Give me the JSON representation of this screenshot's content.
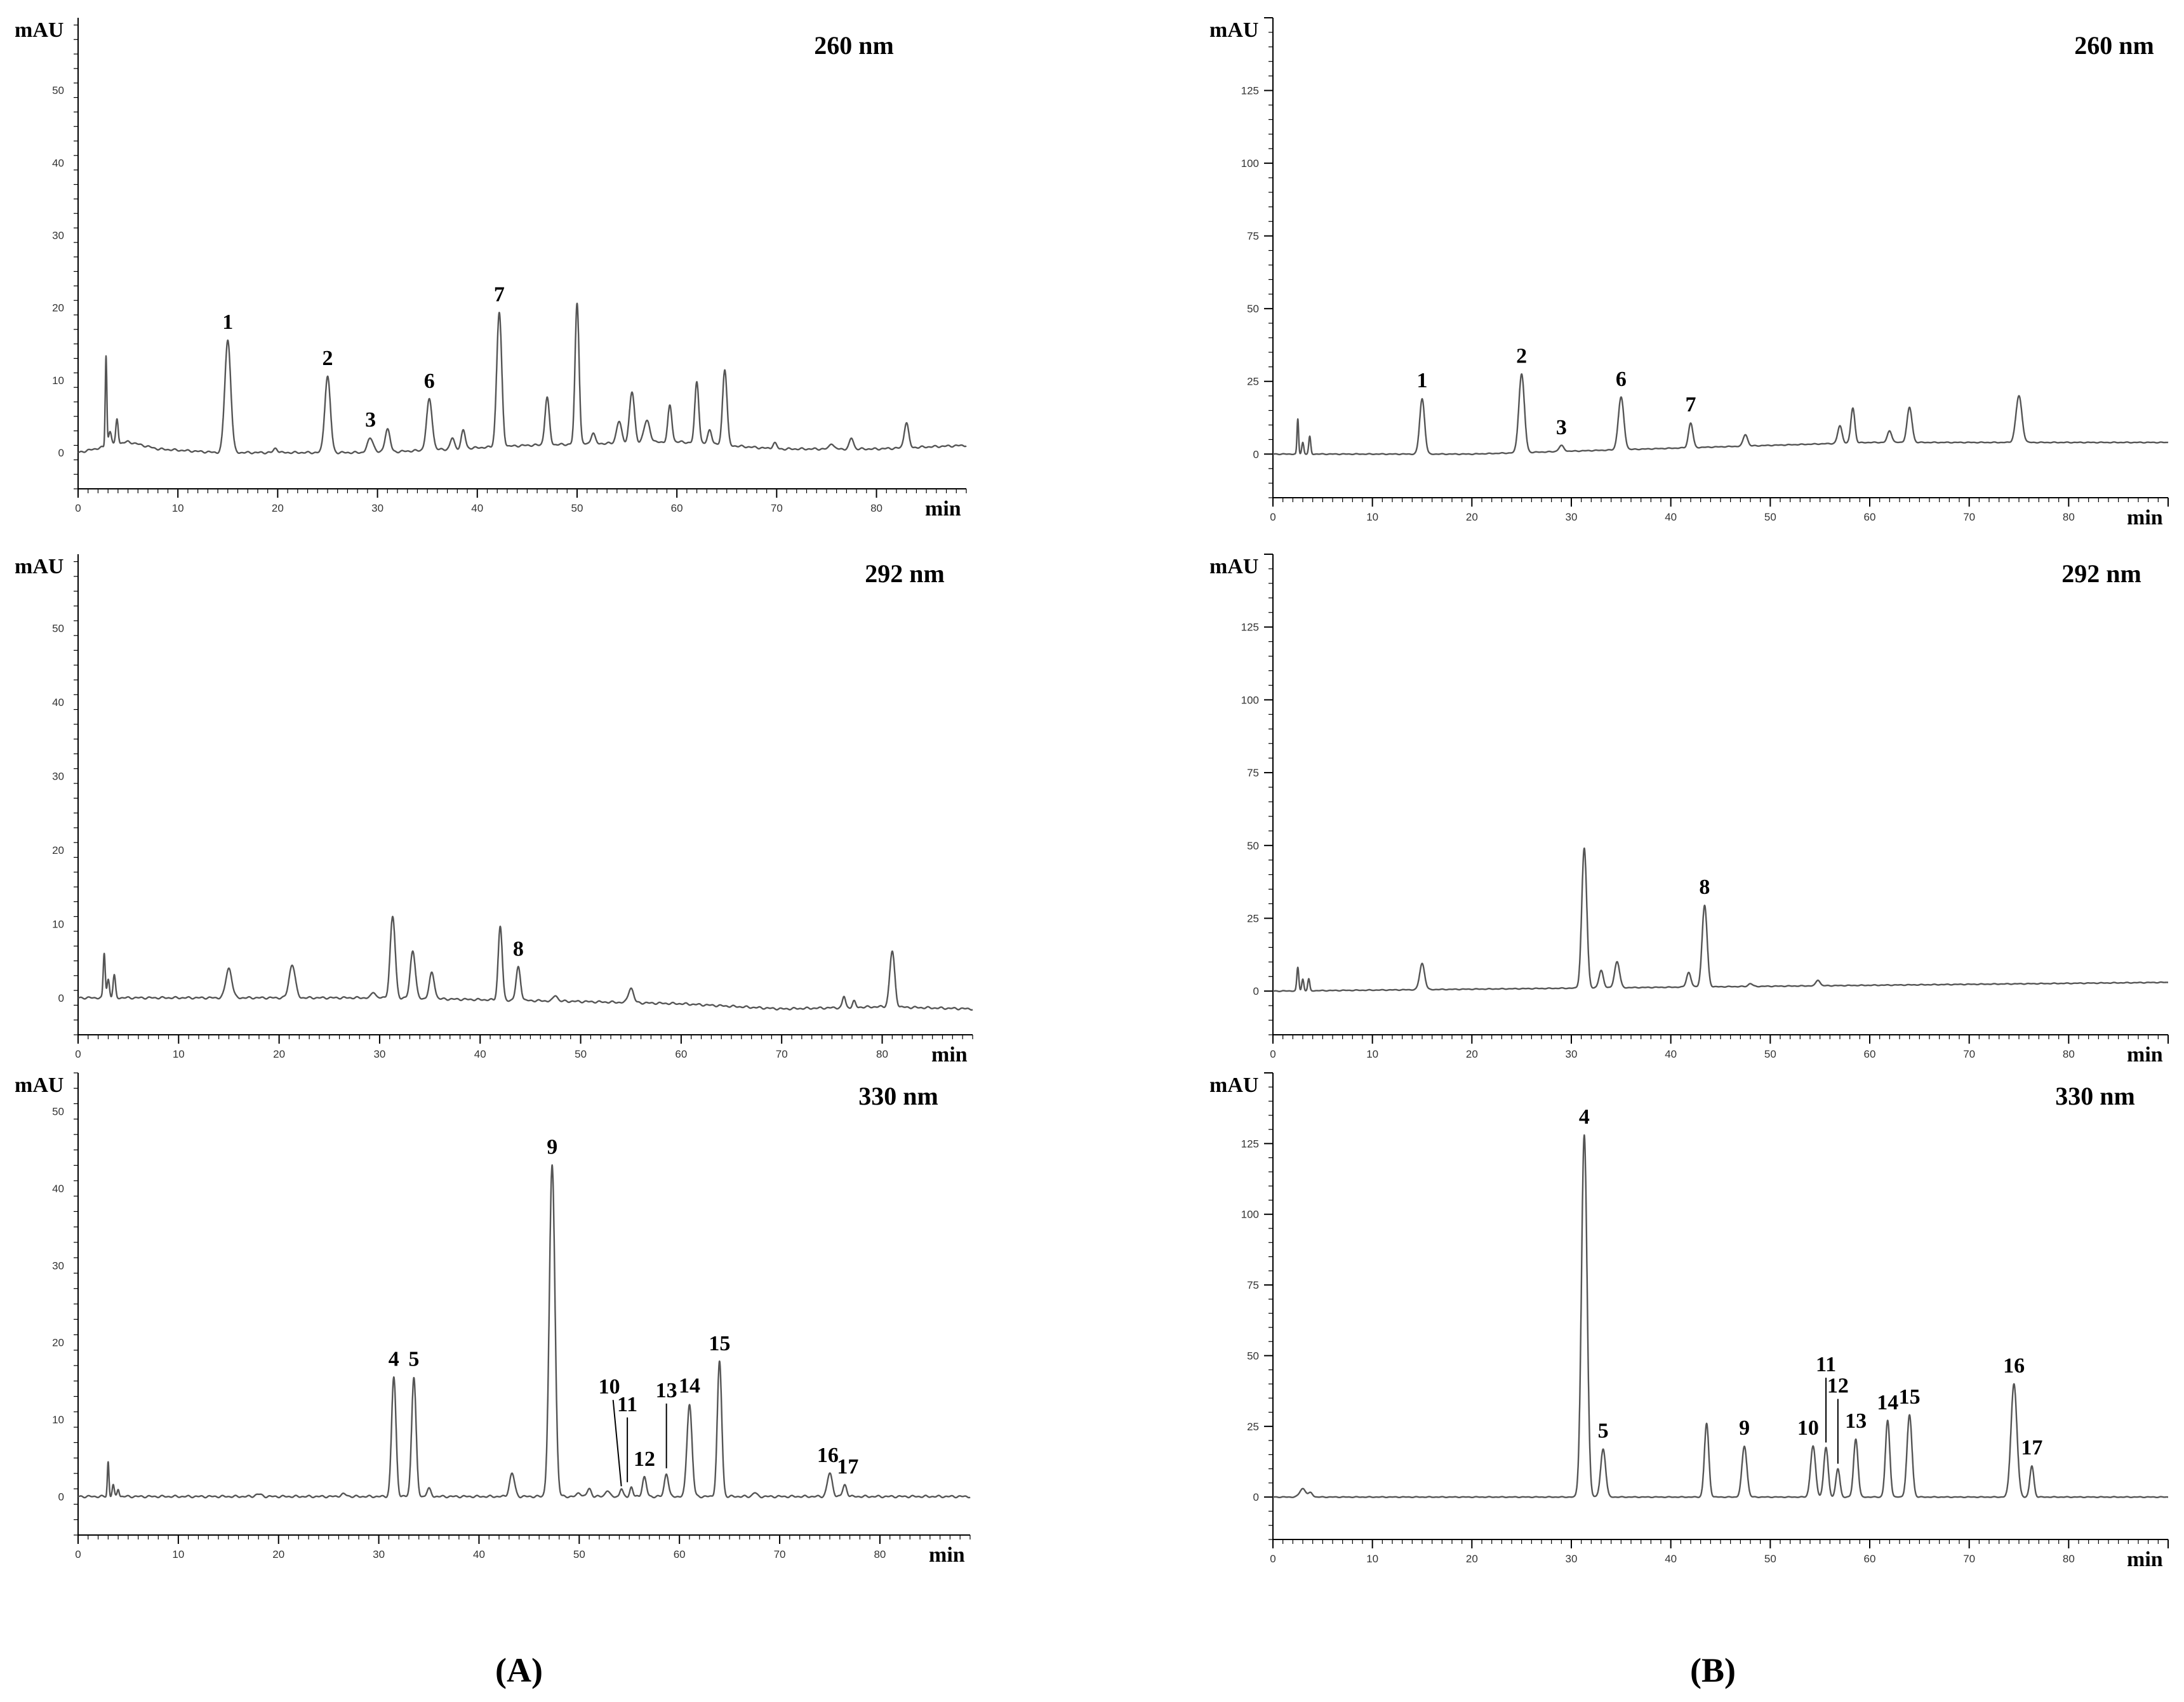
{
  "figure": {
    "panel_labels": [
      "(A)",
      "(B)"
    ]
  },
  "chart_data": [
    {
      "type": "line",
      "panel": "A",
      "title": "260 nm",
      "ylabel": "mAU",
      "xlabel": "min",
      "xlim": [
        0,
        89
      ],
      "ylim": [
        -5,
        60
      ],
      "x_ticks": [
        0,
        10,
        20,
        30,
        40,
        50,
        60,
        70,
        80
      ],
      "y_ticks": [
        0,
        10,
        20,
        30,
        40,
        50
      ],
      "color": "#555555",
      "baseline": [
        [
          0,
          0
        ],
        [
          5,
          1.5
        ],
        [
          8,
          0.5
        ],
        [
          14,
          0
        ],
        [
          30,
          0
        ],
        [
          45,
          1
        ],
        [
          60,
          1.5
        ],
        [
          70,
          0.5
        ],
        [
          80,
          0.5
        ],
        [
          89,
          1
        ]
      ],
      "peaks": [
        {
          "t": 2.8,
          "h": 12.5,
          "w": 0.08
        },
        {
          "t": 3.2,
          "h": 2,
          "w": 0.15
        },
        {
          "t": 3.9,
          "h": 3.5,
          "w": 0.12
        },
        {
          "t": 15.0,
          "h": 15.5,
          "w": 0.3
        },
        {
          "t": 19.8,
          "h": 0.6,
          "w": 0.2
        },
        {
          "t": 25.0,
          "h": 10.5,
          "w": 0.28
        },
        {
          "t": 29.3,
          "h": 2,
          "w": 0.3
        },
        {
          "t": 31.0,
          "h": 3.2,
          "w": 0.25
        },
        {
          "t": 35.2,
          "h": 7,
          "w": 0.28
        },
        {
          "t": 37.5,
          "h": 1.5,
          "w": 0.2
        },
        {
          "t": 38.6,
          "h": 2.5,
          "w": 0.2
        },
        {
          "t": 42.2,
          "h": 18.5,
          "w": 0.25
        },
        {
          "t": 47.0,
          "h": 6.5,
          "w": 0.22
        },
        {
          "t": 50.0,
          "h": 19.5,
          "w": 0.2
        },
        {
          "t": 51.6,
          "h": 1.5,
          "w": 0.2
        },
        {
          "t": 54.2,
          "h": 3,
          "w": 0.25
        },
        {
          "t": 55.5,
          "h": 7,
          "w": 0.25
        },
        {
          "t": 57.0,
          "h": 3,
          "w": 0.3
        },
        {
          "t": 59.3,
          "h": 5,
          "w": 0.2
        },
        {
          "t": 62.0,
          "h": 8.5,
          "w": 0.2
        },
        {
          "t": 63.3,
          "h": 2,
          "w": 0.2
        },
        {
          "t": 64.8,
          "h": 10.5,
          "w": 0.22
        },
        {
          "t": 69.8,
          "h": 0.8,
          "w": 0.2
        },
        {
          "t": 75.5,
          "h": 0.8,
          "w": 0.2
        },
        {
          "t": 77.5,
          "h": 1.5,
          "w": 0.2
        },
        {
          "t": 83.0,
          "h": 3.5,
          "w": 0.22
        }
      ],
      "annotations": [
        {
          "label": "1",
          "t": 15.0,
          "h": 15.5
        },
        {
          "label": "2",
          "t": 25.0,
          "h": 10.5
        },
        {
          "label": "3",
          "t": 29.3,
          "h": 2
        },
        {
          "label": "6",
          "t": 35.2,
          "h": 7
        },
        {
          "label": "7",
          "t": 42.2,
          "h": 18.5
        }
      ]
    },
    {
      "type": "line",
      "panel": "A",
      "title": "292 nm",
      "ylabel": "mAU",
      "xlabel": "min",
      "xlim": [
        0,
        89
      ],
      "ylim": [
        -5,
        60
      ],
      "x_ticks": [
        0,
        10,
        20,
        30,
        40,
        50,
        60,
        70,
        80
      ],
      "y_ticks": [
        0,
        10,
        20,
        30,
        40,
        50
      ],
      "color": "#555555",
      "baseline": [
        [
          0,
          0
        ],
        [
          30,
          0
        ],
        [
          50,
          -0.5
        ],
        [
          60,
          -0.8
        ],
        [
          70,
          -1.5
        ],
        [
          80,
          -1.2
        ],
        [
          89,
          -1.5
        ]
      ],
      "peaks": [
        {
          "t": 2.6,
          "h": 6,
          "w": 0.1
        },
        {
          "t": 3.0,
          "h": 2.5,
          "w": 0.12
        },
        {
          "t": 3.6,
          "h": 3,
          "w": 0.12
        },
        {
          "t": 15.0,
          "h": 4,
          "w": 0.3
        },
        {
          "t": 21.3,
          "h": 4.5,
          "w": 0.3
        },
        {
          "t": 29.4,
          "h": 0.8,
          "w": 0.2
        },
        {
          "t": 31.3,
          "h": 11,
          "w": 0.25
        },
        {
          "t": 33.3,
          "h": 6.5,
          "w": 0.25
        },
        {
          "t": 35.2,
          "h": 3.5,
          "w": 0.25
        },
        {
          "t": 42.0,
          "h": 10,
          "w": 0.2
        },
        {
          "t": 43.8,
          "h": 4.5,
          "w": 0.22
        },
        {
          "t": 47.5,
          "h": 0.8,
          "w": 0.2
        },
        {
          "t": 55.0,
          "h": 2,
          "w": 0.25
        },
        {
          "t": 76.2,
          "h": 1.5,
          "w": 0.15
        },
        {
          "t": 77.2,
          "h": 0.8,
          "w": 0.15
        },
        {
          "t": 81.0,
          "h": 7.5,
          "w": 0.25
        }
      ],
      "annotations": [
        {
          "label": "8",
          "t": 43.8,
          "h": 4.5
        }
      ]
    },
    {
      "type": "line",
      "panel": "A",
      "title": "330 nm",
      "ylabel": "mAU",
      "xlabel": "min",
      "xlim": [
        0,
        89
      ],
      "ylim": [
        -5,
        55
      ],
      "x_ticks": [
        0,
        10,
        20,
        30,
        40,
        50,
        60,
        70,
        80
      ],
      "y_ticks": [
        0,
        10,
        20,
        30,
        40,
        50
      ],
      "color": "#555555",
      "baseline": [
        [
          0,
          0
        ],
        [
          89,
          0
        ]
      ],
      "peaks": [
        {
          "t": 3.0,
          "h": 4.5,
          "w": 0.08
        },
        {
          "t": 3.5,
          "h": 1.5,
          "w": 0.1
        },
        {
          "t": 4.0,
          "h": 1,
          "w": 0.1
        },
        {
          "t": 18.0,
          "h": 0.3,
          "w": 0.3
        },
        {
          "t": 26.5,
          "h": 0.3,
          "w": 0.3
        },
        {
          "t": 31.5,
          "h": 15.5,
          "w": 0.22
        },
        {
          "t": 33.5,
          "h": 15.5,
          "w": 0.22
        },
        {
          "t": 35.0,
          "h": 1,
          "w": 0.2
        },
        {
          "t": 43.3,
          "h": 3,
          "w": 0.25
        },
        {
          "t": 47.3,
          "h": 43,
          "w": 0.28
        },
        {
          "t": 50.0,
          "h": 0.5,
          "w": 0.2
        },
        {
          "t": 51.0,
          "h": 1,
          "w": 0.2
        },
        {
          "t": 52.8,
          "h": 0.8,
          "w": 0.2
        },
        {
          "t": 54.2,
          "h": 1,
          "w": 0.15
        },
        {
          "t": 55.2,
          "h": 1.2,
          "w": 0.15
        },
        {
          "t": 56.5,
          "h": 2.5,
          "w": 0.2
        },
        {
          "t": 58.7,
          "h": 3,
          "w": 0.2
        },
        {
          "t": 61.0,
          "h": 12,
          "w": 0.25
        },
        {
          "t": 64.0,
          "h": 17.5,
          "w": 0.22
        },
        {
          "t": 67.5,
          "h": 0.5,
          "w": 0.2
        },
        {
          "t": 75.0,
          "h": 3,
          "w": 0.25
        },
        {
          "t": 76.5,
          "h": 1.5,
          "w": 0.2
        }
      ],
      "annotations": [
        {
          "label": "4",
          "t": 31.5,
          "h": 15.5
        },
        {
          "label": "5",
          "t": 33.5,
          "h": 15.5
        },
        {
          "label": "9",
          "t": 47.3,
          "h": 43
        },
        {
          "label": "10",
          "t": 53.0,
          "h": 1,
          "leader_to": 54.2
        },
        {
          "label": "11",
          "t": 54.8,
          "h": 1.2,
          "vline": true
        },
        {
          "label": "12",
          "t": 56.5,
          "h": 2.5
        },
        {
          "label": "13",
          "t": 58.7,
          "h": 3,
          "vline": true
        },
        {
          "label": "14",
          "t": 61.0,
          "h": 12
        },
        {
          "label": "15",
          "t": 64.0,
          "h": 17.5
        },
        {
          "label": "16",
          "t": 74.8,
          "h": 3
        },
        {
          "label": "17",
          "t": 76.8,
          "h": 1.5
        }
      ]
    },
    {
      "type": "line",
      "panel": "B",
      "title": "260 nm",
      "ylabel": "mAU",
      "xlabel": "min",
      "xlim": [
        0,
        90
      ],
      "ylim": [
        -15,
        150
      ],
      "x_ticks": [
        0,
        10,
        20,
        30,
        40,
        50,
        60,
        70,
        80
      ],
      "y_ticks": [
        0,
        25,
        50,
        75,
        100,
        125
      ],
      "color": "#555555",
      "baseline": [
        [
          0,
          0
        ],
        [
          20,
          0
        ],
        [
          40,
          2
        ],
        [
          60,
          4
        ],
        [
          75,
          4
        ],
        [
          90,
          4
        ]
      ],
      "peaks": [
        {
          "t": 2.5,
          "h": 12,
          "w": 0.08
        },
        {
          "t": 3.0,
          "h": 4,
          "w": 0.1
        },
        {
          "t": 3.7,
          "h": 6,
          "w": 0.1
        },
        {
          "t": 15.0,
          "h": 19,
          "w": 0.25
        },
        {
          "t": 25.0,
          "h": 27,
          "w": 0.28
        },
        {
          "t": 29.0,
          "h": 2,
          "w": 0.25
        },
        {
          "t": 35.0,
          "h": 18,
          "w": 0.28
        },
        {
          "t": 42.0,
          "h": 8.5,
          "w": 0.22
        },
        {
          "t": 47.5,
          "h": 4,
          "w": 0.22
        },
        {
          "t": 57.0,
          "h": 6,
          "w": 0.22
        },
        {
          "t": 58.3,
          "h": 12,
          "w": 0.2
        },
        {
          "t": 62.0,
          "h": 4,
          "w": 0.22
        },
        {
          "t": 64.0,
          "h": 12,
          "w": 0.25
        },
        {
          "t": 75.0,
          "h": 16,
          "w": 0.3
        }
      ],
      "annotations": [
        {
          "label": "1",
          "t": 15.0,
          "h": 19
        },
        {
          "label": "2",
          "t": 25.0,
          "h": 27
        },
        {
          "label": "3",
          "t": 29.0,
          "h": 2
        },
        {
          "label": "6",
          "t": 35.0,
          "h": 18
        },
        {
          "label": "7",
          "t": 42.0,
          "h": 8.5
        }
      ]
    },
    {
      "type": "line",
      "panel": "B",
      "title": "292 nm",
      "ylabel": "mAU",
      "xlabel": "min",
      "xlim": [
        0,
        90
      ],
      "ylim": [
        -15,
        150
      ],
      "x_ticks": [
        0,
        10,
        20,
        30,
        40,
        50,
        60,
        70,
        80
      ],
      "y_ticks": [
        0,
        25,
        50,
        75,
        100,
        125
      ],
      "color": "#555555",
      "baseline": [
        [
          0,
          0
        ],
        [
          30,
          1
        ],
        [
          60,
          2
        ],
        [
          90,
          3
        ]
      ],
      "peaks": [
        {
          "t": 2.5,
          "h": 8,
          "w": 0.1
        },
        {
          "t": 3.0,
          "h": 4,
          "w": 0.1
        },
        {
          "t": 3.6,
          "h": 4,
          "w": 0.1
        },
        {
          "t": 15.0,
          "h": 9,
          "w": 0.25
        },
        {
          "t": 31.3,
          "h": 48,
          "w": 0.25
        },
        {
          "t": 33.0,
          "h": 6,
          "w": 0.22
        },
        {
          "t": 34.6,
          "h": 9,
          "w": 0.25
        },
        {
          "t": 41.8,
          "h": 5,
          "w": 0.22
        },
        {
          "t": 43.4,
          "h": 28,
          "w": 0.25
        },
        {
          "t": 48.0,
          "h": 1,
          "w": 0.2
        },
        {
          "t": 54.8,
          "h": 2,
          "w": 0.2
        }
      ],
      "annotations": [
        {
          "label": "8",
          "t": 43.4,
          "h": 28
        }
      ]
    },
    {
      "type": "line",
      "panel": "B",
      "title": "330 nm",
      "ylabel": "mAU",
      "xlabel": "min",
      "xlim": [
        0,
        90
      ],
      "ylim": [
        -15,
        150
      ],
      "x_ticks": [
        0,
        10,
        20,
        30,
        40,
        50,
        60,
        70,
        80
      ],
      "y_ticks": [
        0,
        25,
        50,
        75,
        100,
        125
      ],
      "color": "#555555",
      "baseline": [
        [
          0,
          0
        ],
        [
          90,
          0
        ]
      ],
      "peaks": [
        {
          "t": 3.0,
          "h": 3,
          "w": 0.3
        },
        {
          "t": 3.8,
          "h": 1.5,
          "w": 0.2
        },
        {
          "t": 31.3,
          "h": 128,
          "w": 0.28
        },
        {
          "t": 33.2,
          "h": 17,
          "w": 0.25
        },
        {
          "t": 43.6,
          "h": 26,
          "w": 0.22
        },
        {
          "t": 47.4,
          "h": 18,
          "w": 0.25
        },
        {
          "t": 54.3,
          "h": 18,
          "w": 0.25
        },
        {
          "t": 55.6,
          "h": 17.5,
          "w": 0.22
        },
        {
          "t": 56.8,
          "h": 10,
          "w": 0.2
        },
        {
          "t": 58.6,
          "h": 20.5,
          "w": 0.22
        },
        {
          "t": 61.8,
          "h": 27,
          "w": 0.22
        },
        {
          "t": 64.0,
          "h": 29,
          "w": 0.25
        },
        {
          "t": 74.5,
          "h": 40,
          "w": 0.3
        },
        {
          "t": 76.3,
          "h": 11,
          "w": 0.2
        }
      ],
      "annotations": [
        {
          "label": "4",
          "t": 31.3,
          "h": 128
        },
        {
          "label": "5",
          "t": 33.2,
          "h": 17
        },
        {
          "label": "9",
          "t": 47.4,
          "h": 18
        },
        {
          "label": "10",
          "t": 53.8,
          "h": 18
        },
        {
          "label": "11",
          "t": 55.6,
          "h": 17.5,
          "vline": true
        },
        {
          "label": "12",
          "t": 56.8,
          "h": 10,
          "vline": true
        },
        {
          "label": "13",
          "t": 58.6,
          "h": 20.5
        },
        {
          "label": "14",
          "t": 61.8,
          "h": 27
        },
        {
          "label": "15",
          "t": 64.0,
          "h": 29
        },
        {
          "label": "16",
          "t": 74.5,
          "h": 40
        },
        {
          "label": "17",
          "t": 76.3,
          "h": 11
        }
      ]
    }
  ]
}
